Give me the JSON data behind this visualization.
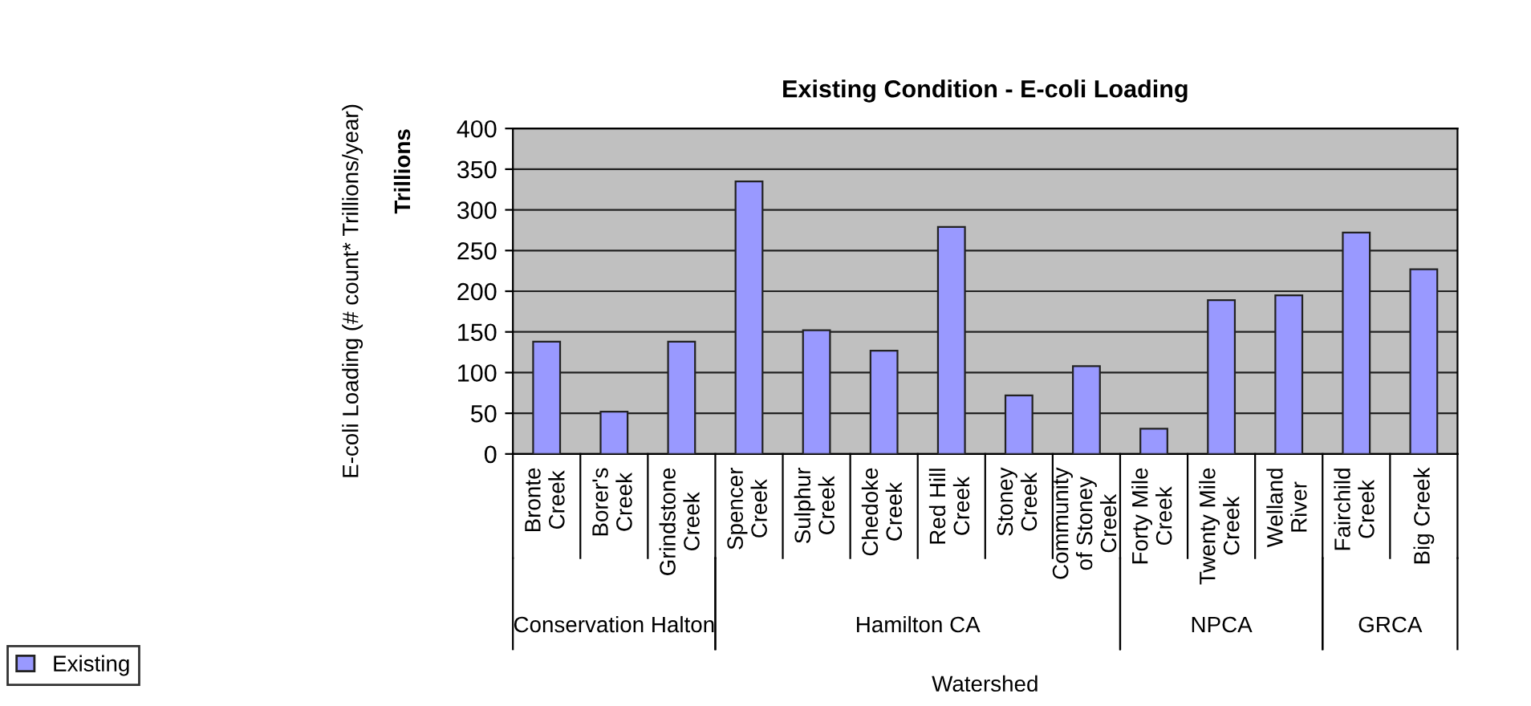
{
  "chart_data": {
    "type": "bar",
    "title": "Existing Condition - E-coli Loading",
    "xlabel": "Watershed",
    "ylabel": "E-coli Loading (# count* Trillions/year)",
    "categories": [
      "Bronte\nCreek",
      "Borer's\nCreek",
      "Grindstone\nCreek",
      "Spencer\nCreek",
      "Sulphur\nCreek",
      "Chedoke\nCreek",
      "Red Hill\nCreek",
      "Stoney\nCreek",
      "Community\nof Stoney\nCreek",
      "Forty Mile\nCreek",
      "Twenty Mile\nCreek",
      "Welland\nRiver",
      "Fairchild\nCreek",
      "Big Creek"
    ],
    "series": [
      {
        "name": "Existing",
        "color": "#9999ff",
        "values": [
          138,
          52,
          138,
          335,
          152,
          127,
          279,
          72,
          108,
          31,
          189,
          195,
          272,
          227
        ]
      }
    ],
    "ylim": [
      0,
      400
    ],
    "yticks": [
      0,
      50,
      100,
      150,
      200,
      250,
      300,
      350,
      400
    ],
    "grid": "y",
    "legend": "bottom left",
    "annotations": [
      "Trillions",
      "Conservation Halton",
      "Hamilton CA",
      "NPCA",
      "GRCA"
    ]
  }
}
